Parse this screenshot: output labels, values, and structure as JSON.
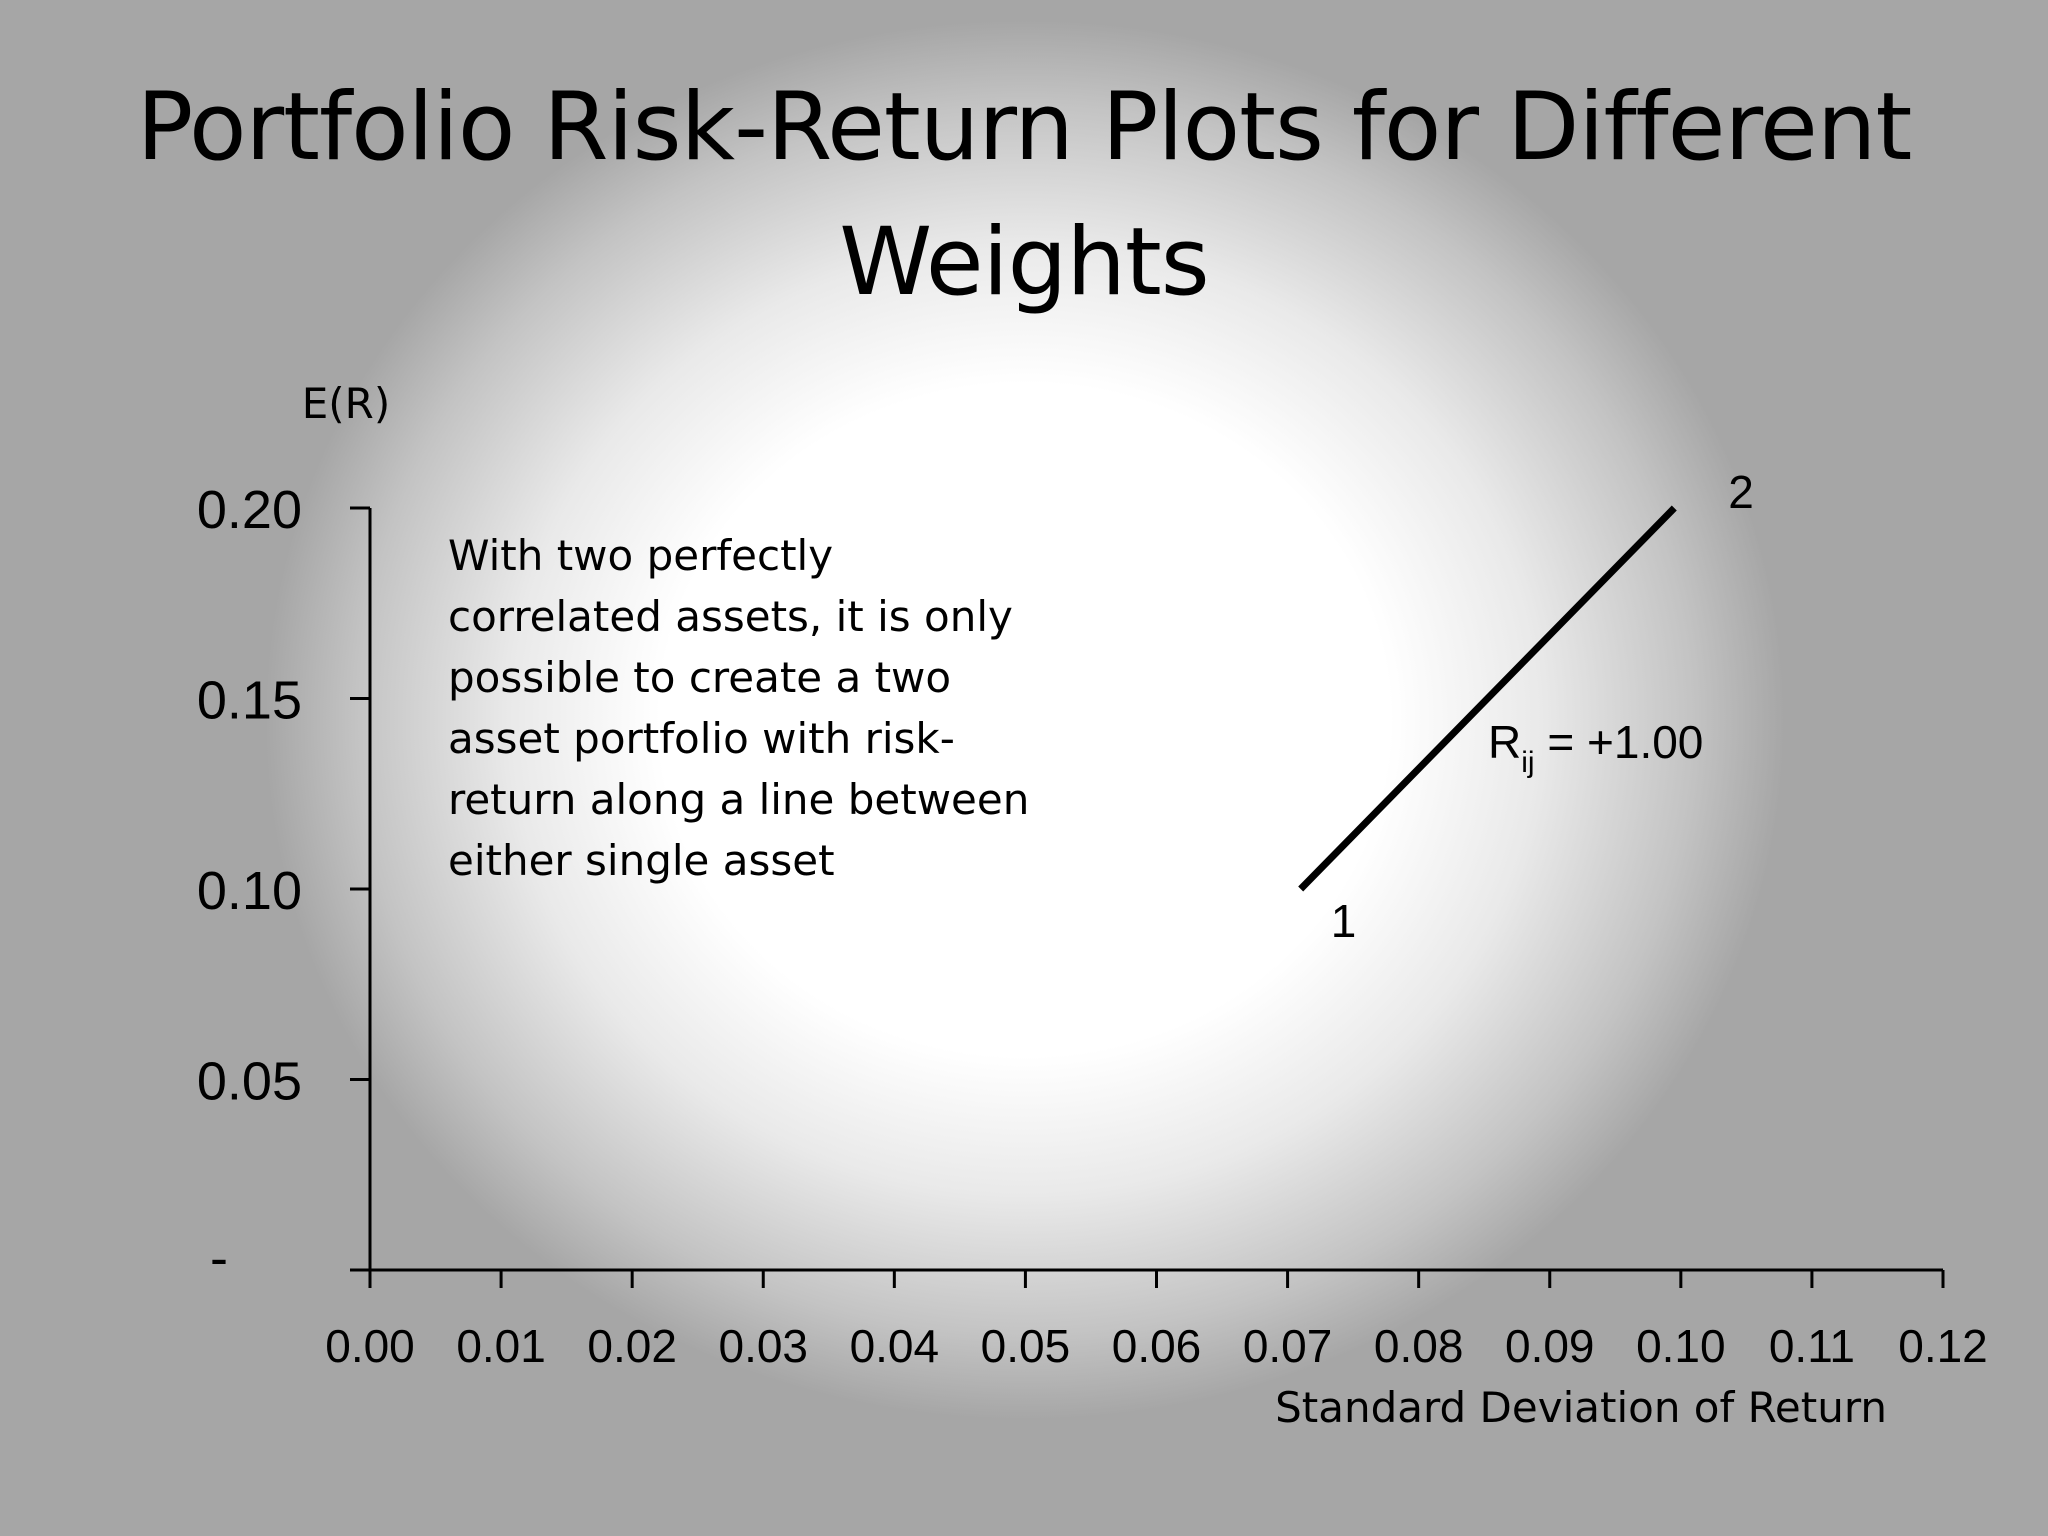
{
  "slide": {
    "title": "Portfolio Risk-Return Plots for Different Weights",
    "annotation": "With two perfectly\ncorrelated assets, it is only\npossible to create a two\nasset portfolio with risk-\nreturn along a line between\neither single asset"
  },
  "chart_data": {
    "type": "line",
    "ylabel": "E(R)",
    "xlabel": "Standard Deviation of Return",
    "xlim": [
      0,
      0.12
    ],
    "ylim": [
      0,
      0.2
    ],
    "x_ticks": [
      "0.00",
      "0.01",
      "0.02",
      "0.03",
      "0.04",
      "0.05",
      "0.06",
      "0.07",
      "0.08",
      "0.09",
      "0.10",
      "0.11",
      "0.12"
    ],
    "y_ticks": [
      "-",
      "0.05",
      "0.10",
      "0.15",
      "0.20"
    ],
    "grid": false,
    "series": [
      {
        "x": [
          0.071,
          0.0995
        ],
        "y": [
          0.1,
          0.2
        ],
        "color": "#000000"
      }
    ],
    "point_labels": [
      {
        "text": "1",
        "x": 0.071,
        "y": 0.1
      },
      {
        "text": "2",
        "x": 0.0995,
        "y": 0.2
      }
    ],
    "correlation_label": {
      "base": "R",
      "subscript": "ij",
      "value": " = +1.00"
    }
  }
}
